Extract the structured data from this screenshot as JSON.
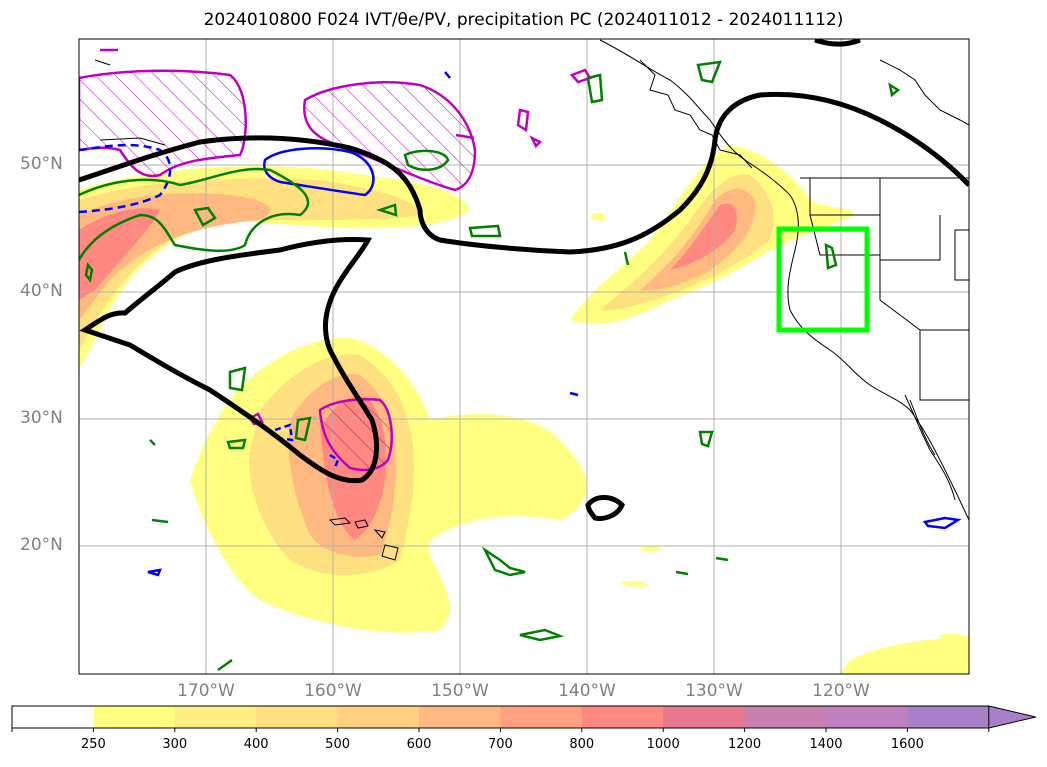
{
  "title": "2024010800 F024 IVT/θe/PV, precipitation PC (2024011012 - 2024011112)",
  "map": {
    "lon_range": [
      -180,
      -110
    ],
    "lat_range": [
      10,
      60
    ],
    "lat_labels": [
      "50°N",
      "40°N",
      "30°N",
      "20°N"
    ],
    "lon_labels": [
      "170°W",
      "160°W",
      "150°W",
      "140°W",
      "130°W",
      "120°W"
    ],
    "gridlines": true,
    "box": {
      "lon_min": -125,
      "lon_max": -118,
      "lat_min": 37,
      "lat_max": 45,
      "color": "#00ff00"
    },
    "contour_colors": {
      "thick": "#000000",
      "green": "#008000",
      "magenta": "#c000c0",
      "blue": "#0000ff"
    }
  },
  "colorbar": {
    "ticks": [
      "250",
      "300",
      "400",
      "500",
      "600",
      "700",
      "800",
      "1000",
      "1200",
      "1400",
      "1600"
    ],
    "colors": [
      "#ffffff",
      "#ffff80",
      "#ffee80",
      "#ffe080",
      "#ffd080",
      "#ffb880",
      "#ffa080",
      "#ff8880",
      "#e87890",
      "#c880b0",
      "#c080c0",
      "#a880c8"
    ],
    "extend": "max"
  }
}
